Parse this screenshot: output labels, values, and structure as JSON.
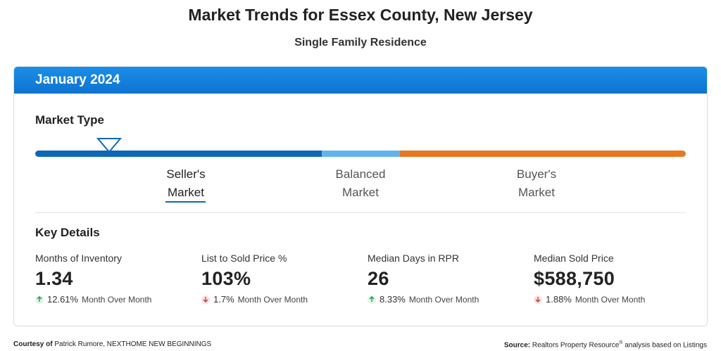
{
  "header": {
    "title": "Market Trends for Essex County, New Jersey",
    "subtitle": "Single Family Residence"
  },
  "card": {
    "period": "January 2024",
    "market_type": {
      "title": "Market Type",
      "labels": [
        {
          "line1": "Seller's",
          "line2": "Market",
          "active": true
        },
        {
          "line1": "Balanced",
          "line2": "Market",
          "active": false
        },
        {
          "line1": "Buyer's",
          "line2": "Market",
          "active": false
        }
      ],
      "colors": {
        "seller": "#0e68b8",
        "balanced": "#63b4ee",
        "buyer": "#e57821"
      }
    },
    "key_details": {
      "title": "Key Details",
      "metrics": [
        {
          "label": "Months of Inventory",
          "value": "1.34",
          "change": "12.61%",
          "direction": "up",
          "period": "Month Over Month"
        },
        {
          "label": "List to Sold Price %",
          "value": "103%",
          "change": "1.7%",
          "direction": "down",
          "period": "Month Over Month"
        },
        {
          "label": "Median Days in RPR",
          "value": "26",
          "change": "8.33%",
          "direction": "up",
          "period": "Month Over Month"
        },
        {
          "label": "Median Sold Price",
          "value": "$588,750",
          "change": "1.88%",
          "direction": "down",
          "period": "Month Over Month"
        }
      ]
    }
  },
  "footer": {
    "courtesy_label": "Courtesy of",
    "courtesy_text": "Patrick Rumore, NEXTHOME NEW BEGINNINGS",
    "source_label": "Source:",
    "source_text_a": "Realtors Property Resource",
    "source_reg": "®",
    "source_text_b": "analysis based on Listings"
  }
}
